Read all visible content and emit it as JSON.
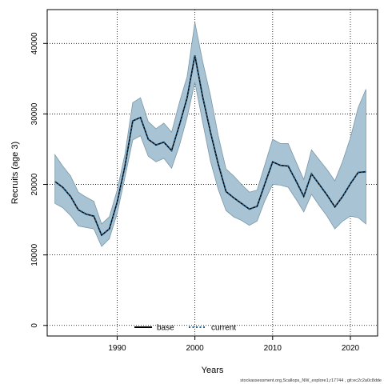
{
  "chart_data": {
    "type": "area",
    "title": "",
    "xlabel": "Years",
    "ylabel": "Recruits (age 3)",
    "xlim": [
      1981,
      2023.5
    ],
    "ylim": [
      -1500,
      44800
    ],
    "x_ticks": [
      1990,
      2000,
      2010,
      2020
    ],
    "y_ticks": [
      0,
      10000,
      20000,
      30000,
      40000
    ],
    "grid": true,
    "legend_position": "bottom-center",
    "x": [
      1982,
      1983,
      1984,
      1985,
      1986,
      1987,
      1988,
      1989,
      1990,
      1991,
      1992,
      1993,
      1994,
      1995,
      1996,
      1997,
      1998,
      1999,
      2000,
      2001,
      2002,
      2003,
      2004,
      2005,
      2006,
      2007,
      2008,
      2009,
      2010,
      2011,
      2012,
      2013,
      2014,
      2015,
      2016,
      2017,
      2018,
      2019,
      2020,
      2021,
      2022
    ],
    "band_lower": [
      17300,
      16700,
      15600,
      14100,
      13900,
      13700,
      11200,
      12300,
      15900,
      21000,
      26300,
      26900,
      24000,
      23200,
      23700,
      22300,
      25500,
      29500,
      34500,
      28800,
      23300,
      19300,
      16300,
      15400,
      14900,
      14200,
      14800,
      17700,
      20000,
      19900,
      19600,
      17900,
      16100,
      18600,
      17000,
      15500,
      13700,
      14800,
      15500,
      15300,
      14400
    ],
    "band_upper": [
      24200,
      22600,
      21200,
      18900,
      18200,
      17600,
      14400,
      15400,
      19200,
      24300,
      31600,
      32300,
      28900,
      27900,
      28700,
      27400,
      31600,
      35300,
      43000,
      37400,
      32600,
      26900,
      22200,
      21200,
      20000,
      18900,
      19200,
      22800,
      26400,
      25800,
      25800,
      23200,
      20700,
      24900,
      23500,
      22100,
      20500,
      23300,
      26600,
      30900,
      33500
    ]
  },
  "series": [
    {
      "name": "base",
      "color": "#000000",
      "style": "solid",
      "values": [
        20400,
        19600,
        18300,
        16400,
        15800,
        15500,
        12800,
        13700,
        17500,
        22600,
        29000,
        29500,
        26400,
        25600,
        26000,
        24800,
        28400,
        32300,
        38300,
        32400,
        27400,
        22900,
        19000,
        18100,
        17300,
        16500,
        16900,
        20100,
        23200,
        22700,
        22600,
        20500,
        18300,
        21500,
        20000,
        18500,
        16800,
        18300,
        20100,
        21700,
        21800
      ]
    },
    {
      "name": "current",
      "color": "#1f5f8b",
      "style": "dotted",
      "values": [
        20400,
        19600,
        18300,
        16400,
        15800,
        15500,
        12800,
        13700,
        17500,
        22600,
        29000,
        29500,
        26400,
        25600,
        26000,
        24800,
        28400,
        32300,
        38300,
        32400,
        27400,
        22900,
        19000,
        18100,
        17300,
        16500,
        16900,
        20100,
        23200,
        22700,
        22600,
        20500,
        18300,
        21500,
        20000,
        18500,
        16800,
        18300,
        20100,
        21700,
        21800
      ]
    }
  ],
  "colors": {
    "band_fill": "#a7c3d4",
    "band_edge": "#7a98a8"
  },
  "footer": "stockassessment.org,Scallops_NW_explore1,r17744 , git:ec2c2a0c8dde"
}
